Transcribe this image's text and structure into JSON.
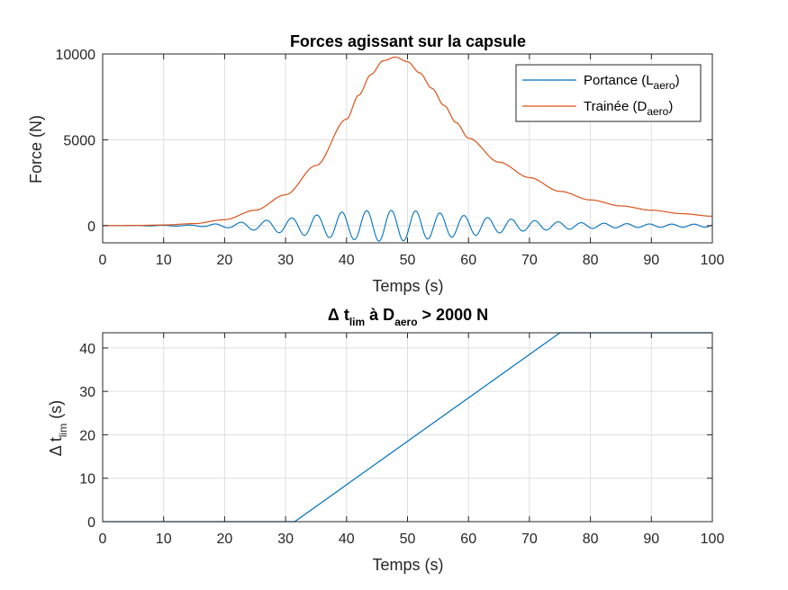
{
  "chart_data": [
    {
      "type": "line",
      "title": "Forces agissant sur la capsule",
      "xlabel": "Temps (s)",
      "ylabel": "Force (N)",
      "xlim": [
        0,
        100
      ],
      "ylim": [
        -1000,
        10000
      ],
      "x_ticks": [
        "0",
        "10",
        "20",
        "30",
        "40",
        "50",
        "60",
        "70",
        "80",
        "90",
        "100"
      ],
      "y_ticks": [
        "0",
        "5000",
        "10000"
      ],
      "grid": true,
      "legend_position": "top-right",
      "colors": {
        "portance": "#0072bd",
        "trainee": "#d95319"
      },
      "legend": [
        {
          "main": "Portance (L",
          "sub": "aero",
          "tail": ")"
        },
        {
          "main": "Trainée (D",
          "sub": "aero",
          "tail": ")"
        }
      ],
      "series": [
        {
          "name": "Portance (Laero)",
          "model": "oscillation",
          "peak_time": 46,
          "period_start": 4.4,
          "period_end": 3.6,
          "envelope": {
            "t": [
              0,
              10,
              15,
              20,
              25,
              30,
              35,
              40,
              45,
              50,
              55,
              60,
              65,
              70,
              75,
              80,
              85,
              90,
              95,
              100
            ],
            "amp": [
              0,
              20,
              40,
              120,
              260,
              430,
              620,
              800,
              900,
              880,
              740,
              580,
              420,
              300,
              220,
              160,
              120,
              100,
              90,
              85
            ]
          }
        },
        {
          "name": "Trainée (Daero)",
          "x": [
            0,
            5,
            10,
            15,
            20,
            25,
            30,
            35,
            40,
            42,
            44,
            46,
            48,
            50,
            52,
            54,
            56,
            58,
            60,
            65,
            70,
            75,
            80,
            85,
            90,
            95,
            100
          ],
          "y": [
            0,
            10,
            40,
            120,
            350,
            900,
            1800,
            3500,
            6200,
            7600,
            8800,
            9600,
            9820,
            9550,
            8900,
            8000,
            7000,
            6000,
            5100,
            3700,
            2800,
            2000,
            1500,
            1150,
            900,
            700,
            550
          ]
        }
      ]
    },
    {
      "type": "line",
      "title": {
        "pre": "Δ t",
        "sub1": "lim",
        "mid": " à D",
        "sub2": "aero",
        "post": " > 2000 N"
      },
      "xlabel": "Temps (s)",
      "ylabel": {
        "pre": "Δ t",
        "sub": "lim",
        "post": " (s)"
      },
      "xlim": [
        0,
        100
      ],
      "ylim": [
        0,
        43.5
      ],
      "x_ticks": [
        "0",
        "10",
        "20",
        "30",
        "40",
        "50",
        "60",
        "70",
        "80",
        "90",
        "100"
      ],
      "y_ticks": [
        "0",
        "10",
        "20",
        "30",
        "40"
      ],
      "grid": true,
      "colors": {
        "line": "#0072bd"
      },
      "series": [
        {
          "x": [
            0,
            31.5,
            75,
            100
          ],
          "y": [
            0,
            0,
            43.5,
            43.5
          ]
        }
      ]
    }
  ]
}
